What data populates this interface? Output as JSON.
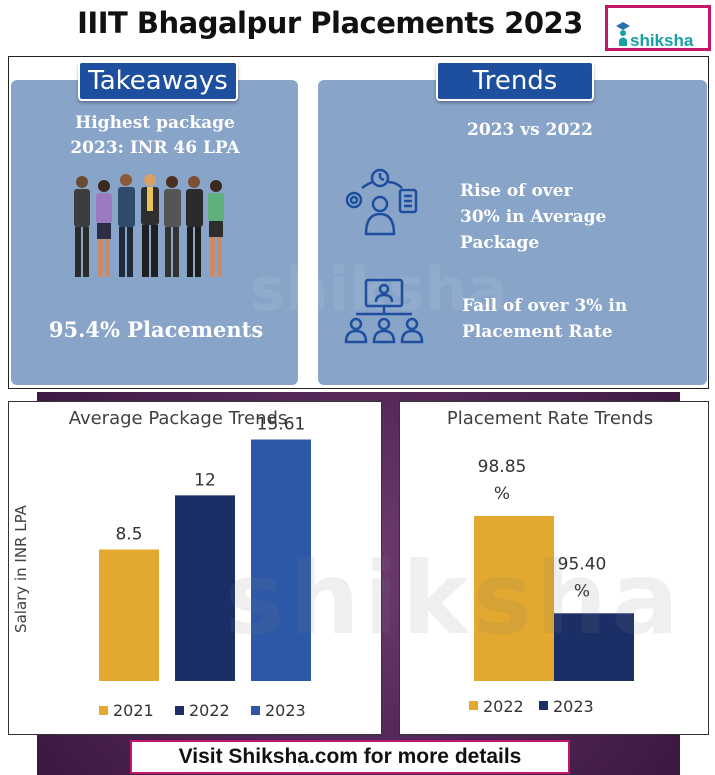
{
  "header": {
    "title": "IIIT Bhagalpur Placements 2023"
  },
  "logo": {
    "text": "shiksha"
  },
  "takeaways": {
    "tag": "Takeaways",
    "highest_line1": "Highest package",
    "highest_line2": "2023:  INR 46 LPA",
    "placements": "95.4% Placements"
  },
  "trends": {
    "tag": "Trends",
    "comparison": "2023  vs 2022",
    "rise_line1": "Rise of over",
    "rise_line2": "30% in Average",
    "rise_line3": "Package",
    "fall_line1": "Fall of over 3% in",
    "fall_line2": "Placement Rate"
  },
  "watermark": "shiksha",
  "footer": {
    "text": "Visit Shiksha.com for more details"
  },
  "colors": {
    "panel": "#88a4c8",
    "tag": "#1d4f9e",
    "bar_2021": "#e2a82f",
    "bar_2022": "#1c2e66",
    "bar_2023": "#2d58a8",
    "rate_2022": "#e2a82f",
    "rate_2023": "#1c2e66",
    "brand": "#c2186b"
  },
  "chart_data": [
    {
      "type": "bar",
      "title": "Average Package Trends",
      "ylabel": "Salary in INR LPA",
      "xlabel": "",
      "categories": [
        "2021",
        "2022",
        "2023"
      ],
      "values": [
        8.5,
        12,
        15.61
      ],
      "data_labels": [
        "8.5",
        "12",
        "15.61"
      ],
      "legend": [
        "2021",
        "2022",
        "2023"
      ],
      "legend_position": "bottom",
      "ylim": [
        0,
        17
      ],
      "grid": false
    },
    {
      "type": "bar",
      "title": "Placement Rate Trends",
      "xlabel": "",
      "ylabel": "",
      "categories": [
        "2022",
        "2023"
      ],
      "values": [
        98.85,
        95.4
      ],
      "data_labels": [
        [
          "98.85",
          "%"
        ],
        [
          "95.40",
          "%"
        ]
      ],
      "legend": [
        "2022",
        "2023"
      ],
      "legend_position": "bottom",
      "ylim": [
        93,
        101
      ],
      "grid": false
    }
  ]
}
